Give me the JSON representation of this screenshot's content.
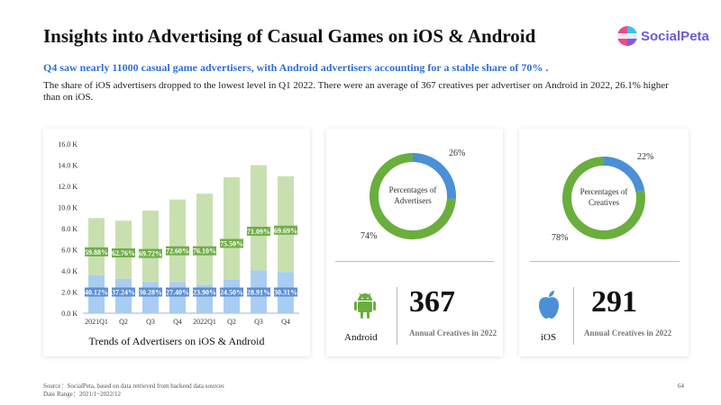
{
  "header": {
    "title": "Insights into Advertising of Casual Games on iOS & Android",
    "logo_text": "SocialPeta"
  },
  "highlight": "Q4 saw nearly 11000 casual game advertisers, with Android advertisers accounting for a stable share of 70% .",
  "description": "The share of iOS advertisers dropped to the lowest level in Q1 2022. There were an average of 367 creatives per advertiser on Android in 2022, 26.1% higher than on iOS.",
  "chart_data": {
    "type": "bar",
    "title": "Trends of Advertisers on iOS & Android",
    "categories": [
      "2021Q1",
      "Q2",
      "Q3",
      "Q4",
      "2022Q1",
      "Q2",
      "Q3",
      "Q4"
    ],
    "y_ticks": [
      "0.0 K",
      "2.0 K",
      "4.0 K",
      "6.0 K",
      "8.0 K",
      "10.0 K",
      "12.0 K",
      "14.0 K",
      "16.0 K"
    ],
    "ylim": [
      0,
      16
    ],
    "stacked": true,
    "series": [
      {
        "values": [
          3.6,
          3.25,
          2.95,
          2.95,
          2.7,
          3.15,
          4.05,
          3.9
        ],
        "labels": [
          "40.12%",
          "37.24%",
          "30.28%",
          "27.40%",
          "23.90%",
          "24.50%",
          "28.91%",
          "30.31%"
        ],
        "color": "#a9cdf2"
      },
      {
        "values": [
          5.4,
          5.5,
          6.75,
          7.8,
          8.6,
          9.7,
          9.95,
          9.05
        ],
        "labels": [
          "59.88%",
          "62.76%",
          "69.72%",
          "72.60%",
          "76.10%",
          "75.50%",
          "71.09%",
          "69.69%"
        ],
        "color": "#c8e0b0"
      }
    ],
    "label_colors": {
      "bottom": "#5b8fd2",
      "top": "#70ad47"
    }
  },
  "advertisers": {
    "donut": {
      "center_label_1": "Percentages of",
      "center_label_2": "Advertisers",
      "ios_pct": "26%",
      "android_pct": "74%",
      "ios_value": 26,
      "android_value": 74,
      "ios_color": "#4a8fd8",
      "android_color": "#6aae3e"
    },
    "platform": "Android",
    "number": "367",
    "subtitle": "Annual Creatives in 2022",
    "icon": "android-icon"
  },
  "creatives": {
    "donut": {
      "center_label_1": "Percentages of",
      "center_label_2": "Creatives",
      "ios_pct": "22%",
      "android_pct": "78%",
      "ios_value": 22,
      "android_value": 78,
      "ios_color": "#4a8fd8",
      "android_color": "#6aae3e"
    },
    "platform": "iOS",
    "number": "291",
    "subtitle": "Annual Creatives in 2022",
    "icon": "apple-icon"
  },
  "footer": {
    "source": "Source：SocialPeta, based on data retrieved from backend data sources",
    "date_range": "Date Range：2021/1~2022/12",
    "page": "64"
  }
}
